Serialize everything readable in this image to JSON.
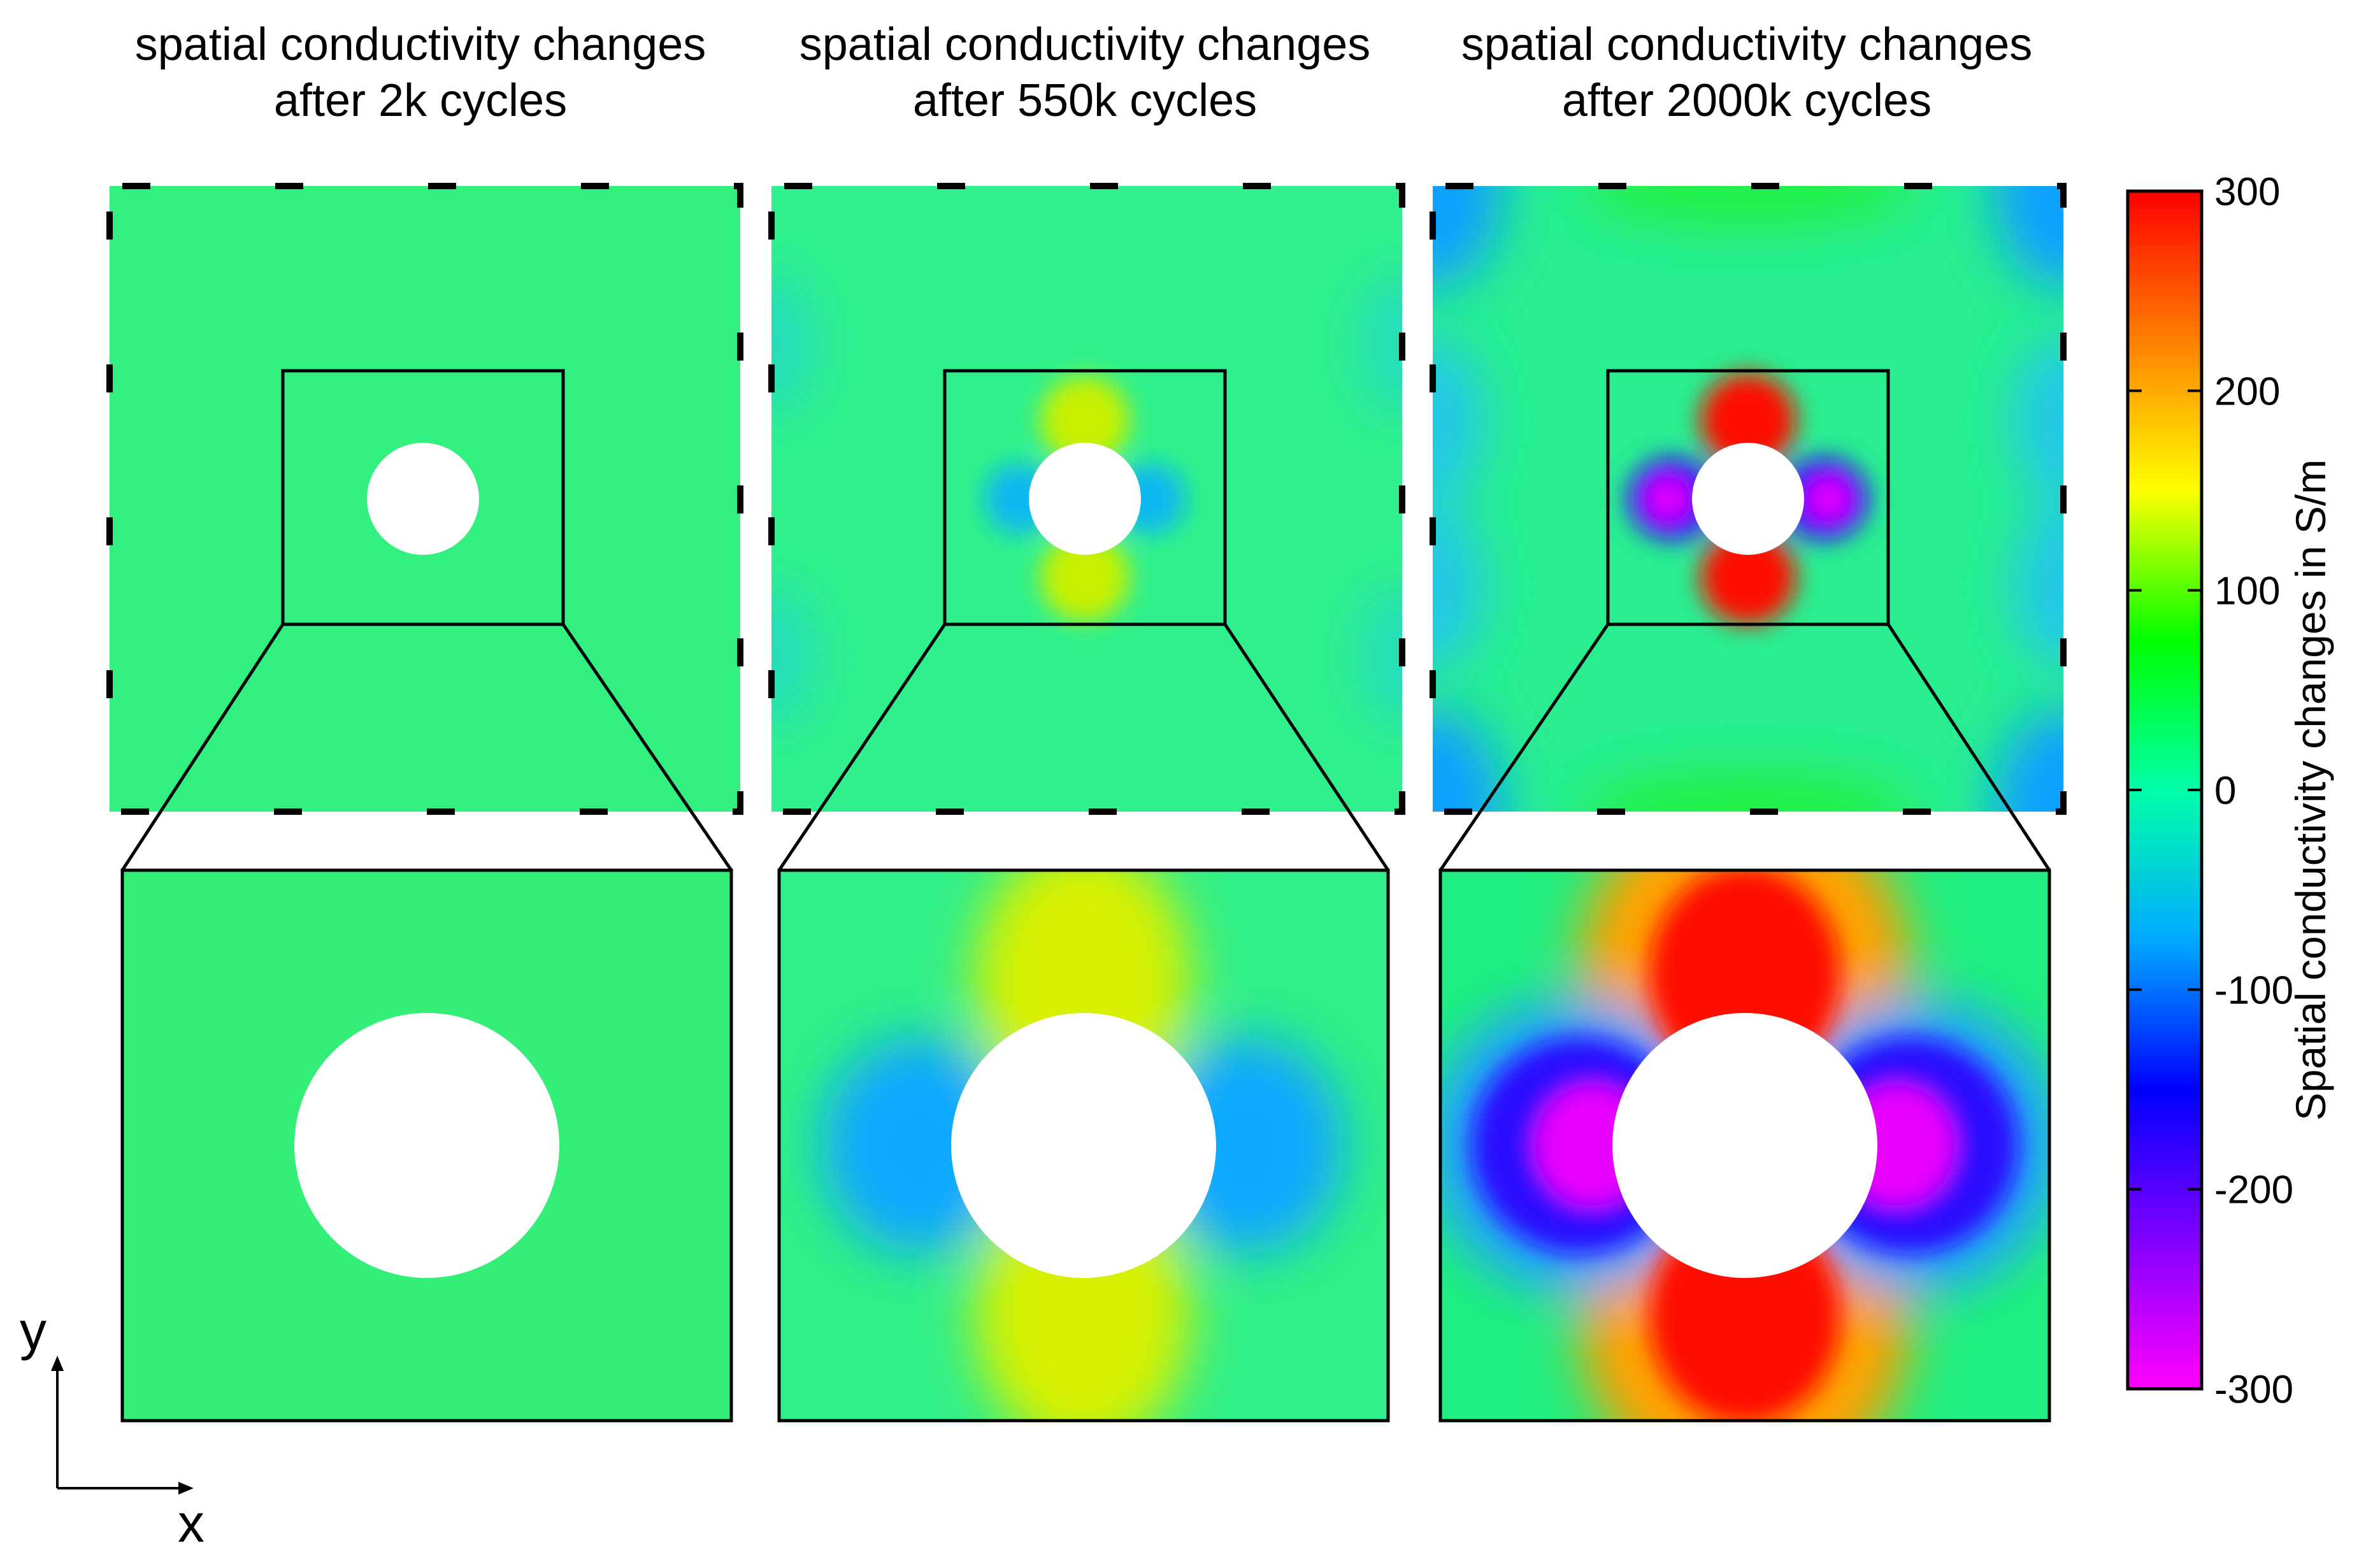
{
  "panels": [
    {
      "title_line1": "spatial conductivity changes",
      "title_line2": "after 2k cycles",
      "intensity": 0.06
    },
    {
      "title_line1": "spatial conductivity changes",
      "title_line2": "after 550k cycles",
      "intensity": 0.55
    },
    {
      "title_line1": "spatial conductivity changes",
      "title_line2": "after 2000k cycles",
      "intensity": 1.0
    }
  ],
  "colorbar": {
    "label": "Spatial conductivity changes in S/m",
    "ticks": [
      "300",
      "200",
      "100",
      "0",
      "-100",
      "-200",
      "-300"
    ],
    "min": -300,
    "max": 300,
    "colors": [
      "#ff0000",
      "#ff8000",
      "#ffff00",
      "#00ff00",
      "#00ffaa",
      "#00aaff",
      "#0000ff",
      "#8000ff",
      "#ff00ff"
    ]
  },
  "axes": {
    "x_label": "x",
    "y_label": "y"
  }
}
